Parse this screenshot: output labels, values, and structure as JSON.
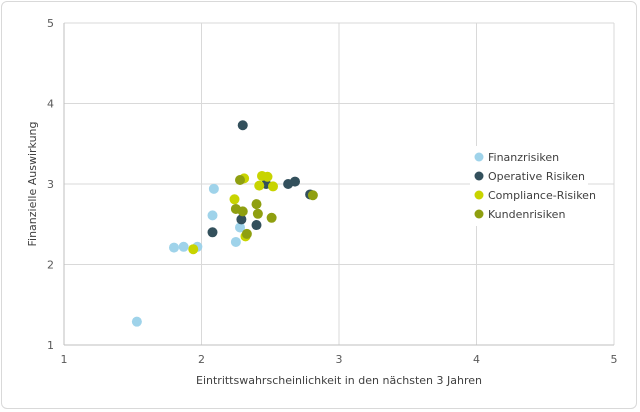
{
  "chart_data": {
    "type": "scatter",
    "xlabel": "Eintrittswahrscheinlichkeit in den nächsten 3 Jahren",
    "ylabel": "Finanzielle Auswirkung",
    "xlim": [
      1,
      5
    ],
    "ylim": [
      1,
      5
    ],
    "xticks": [
      "1",
      "2",
      "3",
      "4",
      "5"
    ],
    "yticks": [
      "1",
      "2",
      "3",
      "4",
      "5"
    ],
    "grid": true,
    "legend_position": "right",
    "series": [
      {
        "name": "Finanzrisiken",
        "color": "#9fd3ea",
        "points": [
          [
            1.53,
            1.29
          ],
          [
            1.8,
            2.21
          ],
          [
            1.87,
            2.22
          ],
          [
            1.97,
            2.22
          ],
          [
            2.08,
            2.61
          ],
          [
            2.09,
            2.94
          ],
          [
            2.25,
            2.28
          ],
          [
            2.28,
            2.46
          ]
        ]
      },
      {
        "name": "Operative Risiken",
        "color": "#33505c",
        "points": [
          [
            2.08,
            2.4
          ],
          [
            2.29,
            2.56
          ],
          [
            2.3,
            3.73
          ],
          [
            2.4,
            2.49
          ],
          [
            2.47,
            3.0
          ],
          [
            2.63,
            3.0
          ],
          [
            2.68,
            3.03
          ],
          [
            2.79,
            2.87
          ]
        ]
      },
      {
        "name": "Compliance-Risiken",
        "color": "#c8d400",
        "points": [
          [
            1.94,
            2.19
          ],
          [
            2.24,
            2.81
          ],
          [
            2.31,
            3.07
          ],
          [
            2.32,
            2.35
          ],
          [
            2.42,
            2.98
          ],
          [
            2.44,
            3.1
          ],
          [
            2.48,
            3.09
          ],
          [
            2.52,
            2.97
          ]
        ]
      },
      {
        "name": "Kundenrisiken",
        "color": "#8f9f10",
        "points": [
          [
            2.25,
            2.69
          ],
          [
            2.28,
            3.05
          ],
          [
            2.3,
            2.66
          ],
          [
            2.33,
            2.38
          ],
          [
            2.4,
            2.75
          ],
          [
            2.41,
            2.63
          ],
          [
            2.51,
            2.58
          ],
          [
            2.81,
            2.86
          ]
        ]
      }
    ]
  }
}
